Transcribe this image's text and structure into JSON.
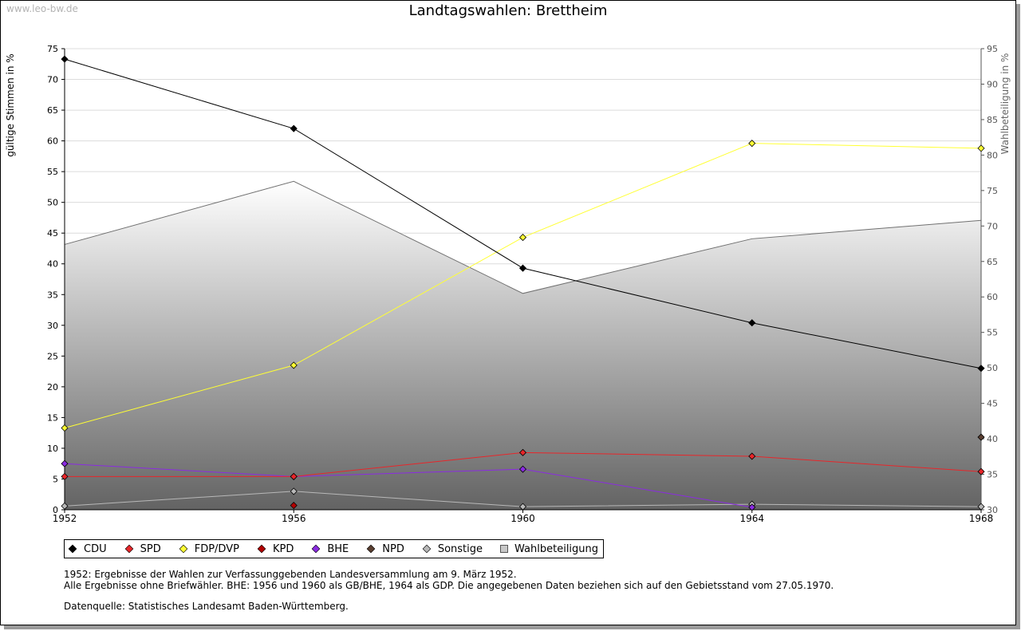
{
  "watermark": "www.leo-bw.de",
  "chart_data": {
    "type": "line",
    "title": "Landtagswahlen: Brettheim",
    "ylabel_left": "gültige Stimmen in %",
    "ylabel_right": "Wahlbeteiligung in %",
    "x": [
      1952,
      1956,
      1960,
      1964,
      1968
    ],
    "ylim_left": [
      0,
      75
    ],
    "yticks_left": [
      0,
      5,
      10,
      15,
      20,
      25,
      30,
      35,
      40,
      45,
      50,
      55,
      60,
      65,
      70,
      75
    ],
    "ylim_right": [
      30,
      95
    ],
    "yticks_right": [
      30,
      35,
      40,
      45,
      50,
      55,
      60,
      65,
      70,
      75,
      80,
      85,
      90,
      95
    ],
    "grid": true,
    "legend_placement": "bottom",
    "series": [
      {
        "name": "CDU",
        "color": "#000000",
        "line": true,
        "values": [
          73.3,
          62.0,
          39.3,
          30.4,
          23.0
        ]
      },
      {
        "name": "SPD",
        "color": "#e8262a",
        "line": true,
        "values": [
          5.4,
          5.4,
          9.3,
          8.7,
          6.2
        ]
      },
      {
        "name": "FDP/DVP",
        "color": "#ffff33",
        "line": true,
        "values": [
          13.3,
          23.5,
          44.3,
          59.6,
          58.8
        ]
      },
      {
        "name": "KPD",
        "color": "#b30000",
        "line": false,
        "values": [
          null,
          0.7,
          null,
          null,
          null
        ]
      },
      {
        "name": "BHE",
        "color": "#8b2be2",
        "line": true,
        "values": [
          7.5,
          5.4,
          6.6,
          0.4,
          null
        ]
      },
      {
        "name": "NPD",
        "color": "#5a3e30",
        "line": false,
        "values": [
          null,
          null,
          null,
          null,
          11.8
        ]
      },
      {
        "name": "Sonstige",
        "color": "#b8b8b8",
        "line": true,
        "values": [
          0.6,
          3.0,
          0.5,
          0.9,
          0.5
        ]
      }
    ],
    "turnout": {
      "name": "Wahlbeteiligung",
      "axis": "right",
      "type": "area",
      "values": [
        67.4,
        76.3,
        60.5,
        68.2,
        70.8
      ]
    }
  },
  "notes": {
    "line1": "1952: Ergebnisse der Wahlen zur Verfassunggebenden Landesversammlung am 9. März 1952.",
    "line2": "Alle Ergebnisse ohne Briefwähler. BHE: 1956 und 1960 als GB/BHE, 1964 als GDP. Die angegebenen Daten beziehen sich auf den Gebietsstand vom 27.05.1970.",
    "line3": "Datenquelle: Statistisches Landesamt Baden-Württemberg."
  }
}
